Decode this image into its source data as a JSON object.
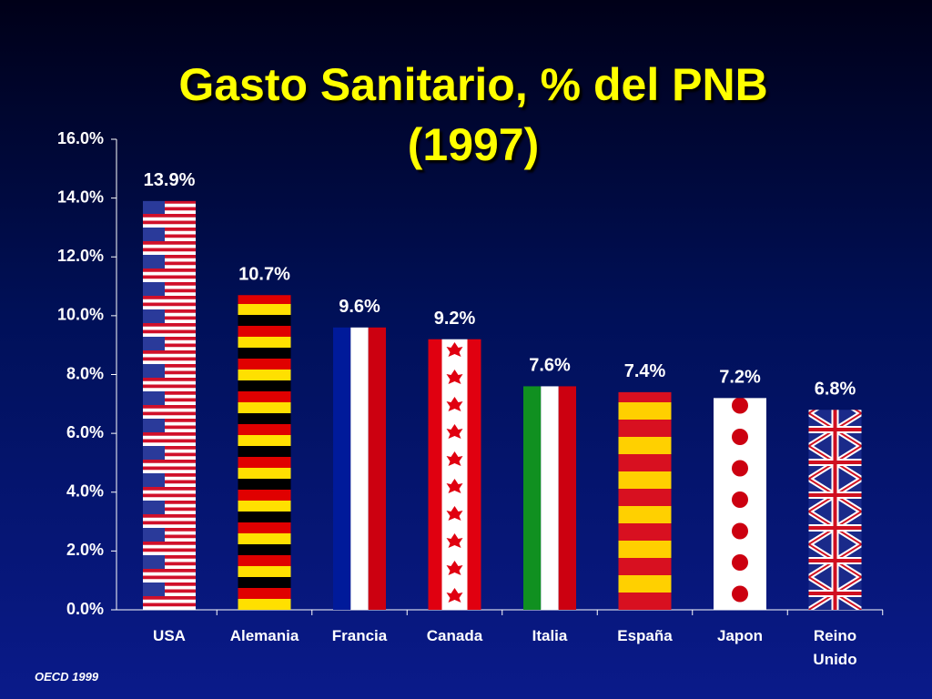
{
  "chart_data": {
    "type": "bar",
    "title": "Gasto Sanitario, % del PNB (1997)",
    "categories": [
      "USA",
      "Alemania",
      "Francia",
      "Canada",
      "Italia",
      "España",
      "Japon",
      "Reino Unido"
    ],
    "values": [
      13.9,
      10.7,
      9.6,
      9.2,
      7.6,
      7.4,
      7.2,
      6.8
    ],
    "value_labels": [
      "13.9%",
      "10.7%",
      "9.6%",
      "9.2%",
      "7.6%",
      "7.4%",
      "7.2%",
      "6.8%"
    ],
    "ylim": [
      0,
      16
    ],
    "yticks": [
      {
        "value": 0,
        "label": "0.0%"
      },
      {
        "value": 2,
        "label": "2.0%"
      },
      {
        "value": 4,
        "label": "4.0%"
      },
      {
        "value": 6,
        "label": "6.0%"
      },
      {
        "value": 8,
        "label": "8.0%"
      },
      {
        "value": 10,
        "label": "10.0%"
      },
      {
        "value": 12,
        "label": "12.0%"
      },
      {
        "value": 14,
        "label": "14.0%"
      },
      {
        "value": 16,
        "label": "16.0%"
      }
    ],
    "source": "OECD 1999"
  }
}
